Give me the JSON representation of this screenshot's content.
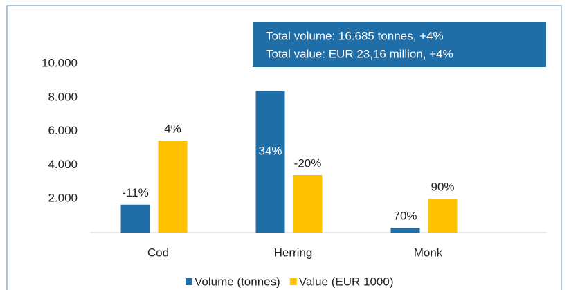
{
  "chart_data": {
    "type": "bar",
    "annotation": [
      "Total volume: 16.685 tonnes, +4%",
      "Total value: EUR 23,16 million, +4%"
    ],
    "categories": [
      "Cod",
      "Herring",
      "Monk"
    ],
    "series": [
      {
        "name": "Volume (tonnes)",
        "color": "#1f6ea8",
        "values": [
          1650,
          8400,
          280
        ],
        "change_labels": [
          "-11%",
          "34%",
          "70%"
        ]
      },
      {
        "name": "Value (EUR 1000)",
        "color": "#ffc000",
        "values": [
          5450,
          3400,
          2000
        ],
        "change_labels": [
          "4%",
          "-20%",
          "90%"
        ]
      }
    ],
    "ylim": [
      0,
      10000
    ],
    "yticks": [
      {
        "value": 2000,
        "label": "2.000"
      },
      {
        "value": 4000,
        "label": "4.000"
      },
      {
        "value": 6000,
        "label": "6.000"
      },
      {
        "value": 8000,
        "label": "8.000"
      },
      {
        "value": 10000,
        "label": "10.000"
      }
    ]
  }
}
